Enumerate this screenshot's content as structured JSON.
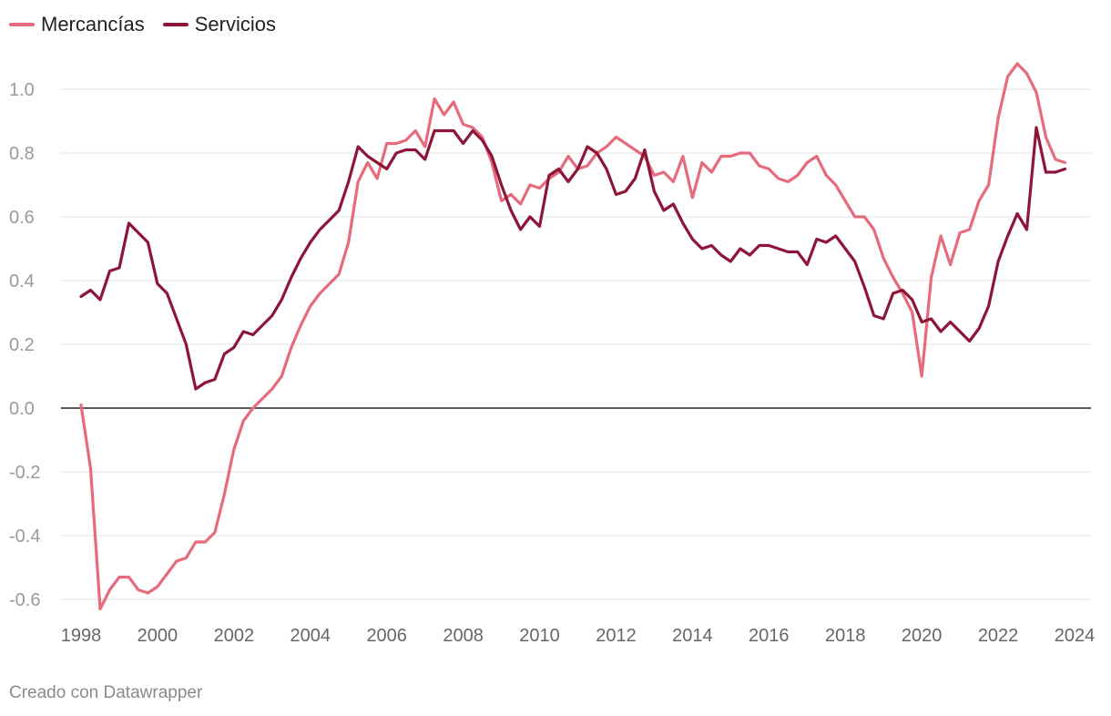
{
  "chart_data": {
    "type": "line",
    "title": "",
    "xlabel": "",
    "ylabel": "",
    "xlim": [
      1998,
      2024
    ],
    "ylim": [
      -0.6,
      1.1
    ],
    "y_ticks": [
      1.0,
      0.8,
      0.6,
      0.4,
      0.2,
      0.0,
      -0.2,
      -0.4,
      -0.6
    ],
    "y_tick_labels": [
      "1.0",
      "0.8",
      "0.6",
      "0.4",
      "0.2",
      "0.0",
      "-0.2",
      "-0.4",
      "-0.6"
    ],
    "x_ticks": [
      1998,
      2000,
      2002,
      2004,
      2006,
      2008,
      2010,
      2012,
      2014,
      2016,
      2018,
      2020,
      2022,
      2024
    ],
    "x_tick_labels": [
      "1998",
      "2000",
      "2002",
      "2004",
      "2006",
      "2008",
      "2010",
      "2012",
      "2014",
      "2016",
      "2018",
      "2020",
      "2022",
      "2024"
    ],
    "grid": true,
    "legend_position": "top-left",
    "series": [
      {
        "name": "Mercancías",
        "color": "#e56b7d",
        "values": [
          [
            1998.0,
            0.01
          ],
          [
            1998.25,
            -0.19
          ],
          [
            1998.5,
            -0.63
          ],
          [
            1998.75,
            -0.57
          ],
          [
            1999.0,
            -0.53
          ],
          [
            1999.25,
            -0.53
          ],
          [
            1999.5,
            -0.57
          ],
          [
            1999.75,
            -0.58
          ],
          [
            2000.0,
            -0.56
          ],
          [
            2000.25,
            -0.52
          ],
          [
            2000.5,
            -0.48
          ],
          [
            2000.75,
            -0.47
          ],
          [
            2001.0,
            -0.42
          ],
          [
            2001.25,
            -0.42
          ],
          [
            2001.5,
            -0.39
          ],
          [
            2001.75,
            -0.27
          ],
          [
            2002.0,
            -0.13
          ],
          [
            2002.25,
            -0.04
          ],
          [
            2002.5,
            0.0
          ],
          [
            2002.75,
            0.03
          ],
          [
            2003.0,
            0.06
          ],
          [
            2003.25,
            0.1
          ],
          [
            2003.5,
            0.19
          ],
          [
            2003.75,
            0.26
          ],
          [
            2004.0,
            0.32
          ],
          [
            2004.25,
            0.36
          ],
          [
            2004.5,
            0.39
          ],
          [
            2004.75,
            0.42
          ],
          [
            2005.0,
            0.52
          ],
          [
            2005.25,
            0.71
          ],
          [
            2005.5,
            0.77
          ],
          [
            2005.75,
            0.72
          ],
          [
            2006.0,
            0.83
          ],
          [
            2006.25,
            0.83
          ],
          [
            2006.5,
            0.84
          ],
          [
            2006.75,
            0.87
          ],
          [
            2007.0,
            0.82
          ],
          [
            2007.25,
            0.97
          ],
          [
            2007.5,
            0.92
          ],
          [
            2007.75,
            0.96
          ],
          [
            2008.0,
            0.89
          ],
          [
            2008.25,
            0.88
          ],
          [
            2008.5,
            0.85
          ],
          [
            2008.75,
            0.77
          ],
          [
            2009.0,
            0.65
          ],
          [
            2009.25,
            0.67
          ],
          [
            2009.5,
            0.64
          ],
          [
            2009.75,
            0.7
          ],
          [
            2010.0,
            0.69
          ],
          [
            2010.25,
            0.72
          ],
          [
            2010.5,
            0.74
          ],
          [
            2010.75,
            0.79
          ],
          [
            2011.0,
            0.75
          ],
          [
            2011.25,
            0.76
          ],
          [
            2011.5,
            0.8
          ],
          [
            2011.75,
            0.82
          ],
          [
            2012.0,
            0.85
          ],
          [
            2012.25,
            0.83
          ],
          [
            2012.5,
            0.81
          ],
          [
            2012.75,
            0.79
          ],
          [
            2013.0,
            0.73
          ],
          [
            2013.25,
            0.74
          ],
          [
            2013.5,
            0.71
          ],
          [
            2013.75,
            0.79
          ],
          [
            2014.0,
            0.66
          ],
          [
            2014.25,
            0.77
          ],
          [
            2014.5,
            0.74
          ],
          [
            2014.75,
            0.79
          ],
          [
            2015.0,
            0.79
          ],
          [
            2015.25,
            0.8
          ],
          [
            2015.5,
            0.8
          ],
          [
            2015.75,
            0.76
          ],
          [
            2016.0,
            0.75
          ],
          [
            2016.25,
            0.72
          ],
          [
            2016.5,
            0.71
          ],
          [
            2016.75,
            0.73
          ],
          [
            2017.0,
            0.77
          ],
          [
            2017.25,
            0.79
          ],
          [
            2017.5,
            0.73
          ],
          [
            2017.75,
            0.7
          ],
          [
            2018.0,
            0.65
          ],
          [
            2018.25,
            0.6
          ],
          [
            2018.5,
            0.6
          ],
          [
            2018.75,
            0.56
          ],
          [
            2019.0,
            0.47
          ],
          [
            2019.25,
            0.41
          ],
          [
            2019.5,
            0.36
          ],
          [
            2019.75,
            0.3
          ],
          [
            2020.0,
            0.1
          ],
          [
            2020.25,
            0.41
          ],
          [
            2020.5,
            0.54
          ],
          [
            2020.75,
            0.45
          ],
          [
            2021.0,
            0.55
          ],
          [
            2021.25,
            0.56
          ],
          [
            2021.5,
            0.65
          ],
          [
            2021.75,
            0.7
          ],
          [
            2022.0,
            0.91
          ],
          [
            2022.25,
            1.04
          ],
          [
            2022.5,
            1.08
          ],
          [
            2022.75,
            1.05
          ],
          [
            2023.0,
            0.99
          ],
          [
            2023.25,
            0.85
          ],
          [
            2023.5,
            0.78
          ],
          [
            2023.75,
            0.77
          ]
        ]
      },
      {
        "name": "Servicios",
        "color": "#8c1538",
        "values": [
          [
            1998.0,
            0.35
          ],
          [
            1998.25,
            0.37
          ],
          [
            1998.5,
            0.34
          ],
          [
            1998.75,
            0.43
          ],
          [
            1999.0,
            0.44
          ],
          [
            1999.25,
            0.58
          ],
          [
            1999.5,
            0.55
          ],
          [
            1999.75,
            0.52
          ],
          [
            2000.0,
            0.39
          ],
          [
            2000.25,
            0.36
          ],
          [
            2000.5,
            0.28
          ],
          [
            2000.75,
            0.2
          ],
          [
            2001.0,
            0.06
          ],
          [
            2001.25,
            0.08
          ],
          [
            2001.5,
            0.09
          ],
          [
            2001.75,
            0.17
          ],
          [
            2002.0,
            0.19
          ],
          [
            2002.25,
            0.24
          ],
          [
            2002.5,
            0.23
          ],
          [
            2002.75,
            0.26
          ],
          [
            2003.0,
            0.29
          ],
          [
            2003.25,
            0.34
          ],
          [
            2003.5,
            0.41
          ],
          [
            2003.75,
            0.47
          ],
          [
            2004.0,
            0.52
          ],
          [
            2004.25,
            0.56
          ],
          [
            2004.5,
            0.59
          ],
          [
            2004.75,
            0.62
          ],
          [
            2005.0,
            0.71
          ],
          [
            2005.25,
            0.82
          ],
          [
            2005.5,
            0.79
          ],
          [
            2005.75,
            0.77
          ],
          [
            2006.0,
            0.75
          ],
          [
            2006.25,
            0.8
          ],
          [
            2006.5,
            0.81
          ],
          [
            2006.75,
            0.81
          ],
          [
            2007.0,
            0.78
          ],
          [
            2007.25,
            0.87
          ],
          [
            2007.5,
            0.87
          ],
          [
            2007.75,
            0.87
          ],
          [
            2008.0,
            0.83
          ],
          [
            2008.25,
            0.87
          ],
          [
            2008.5,
            0.84
          ],
          [
            2008.75,
            0.79
          ],
          [
            2009.0,
            0.7
          ],
          [
            2009.25,
            0.62
          ],
          [
            2009.5,
            0.56
          ],
          [
            2009.75,
            0.6
          ],
          [
            2010.0,
            0.57
          ],
          [
            2010.25,
            0.73
          ],
          [
            2010.5,
            0.75
          ],
          [
            2010.75,
            0.71
          ],
          [
            2011.0,
            0.75
          ],
          [
            2011.25,
            0.82
          ],
          [
            2011.5,
            0.8
          ],
          [
            2011.75,
            0.75
          ],
          [
            2012.0,
            0.67
          ],
          [
            2012.25,
            0.68
          ],
          [
            2012.5,
            0.72
          ],
          [
            2012.75,
            0.81
          ],
          [
            2013.0,
            0.68
          ],
          [
            2013.25,
            0.62
          ],
          [
            2013.5,
            0.64
          ],
          [
            2013.75,
            0.58
          ],
          [
            2014.0,
            0.53
          ],
          [
            2014.25,
            0.5
          ],
          [
            2014.5,
            0.51
          ],
          [
            2014.75,
            0.48
          ],
          [
            2015.0,
            0.46
          ],
          [
            2015.25,
            0.5
          ],
          [
            2015.5,
            0.48
          ],
          [
            2015.75,
            0.51
          ],
          [
            2016.0,
            0.51
          ],
          [
            2016.25,
            0.5
          ],
          [
            2016.5,
            0.49
          ],
          [
            2016.75,
            0.49
          ],
          [
            2017.0,
            0.45
          ],
          [
            2017.25,
            0.53
          ],
          [
            2017.5,
            0.52
          ],
          [
            2017.75,
            0.54
          ],
          [
            2018.0,
            0.5
          ],
          [
            2018.25,
            0.46
          ],
          [
            2018.5,
            0.38
          ],
          [
            2018.75,
            0.29
          ],
          [
            2019.0,
            0.28
          ],
          [
            2019.25,
            0.36
          ],
          [
            2019.5,
            0.37
          ],
          [
            2019.75,
            0.34
          ],
          [
            2020.0,
            0.27
          ],
          [
            2020.25,
            0.28
          ],
          [
            2020.5,
            0.24
          ],
          [
            2020.75,
            0.27
          ],
          [
            2021.0,
            0.24
          ],
          [
            2021.25,
            0.21
          ],
          [
            2021.5,
            0.25
          ],
          [
            2021.75,
            0.32
          ],
          [
            2022.0,
            0.46
          ],
          [
            2022.25,
            0.54
          ],
          [
            2022.5,
            0.61
          ],
          [
            2022.75,
            0.56
          ],
          [
            2023.0,
            0.88
          ],
          [
            2023.25,
            0.74
          ],
          [
            2023.5,
            0.74
          ],
          [
            2023.75,
            0.75
          ]
        ]
      }
    ]
  },
  "footer": {
    "credit": "Creado con Datawrapper"
  }
}
